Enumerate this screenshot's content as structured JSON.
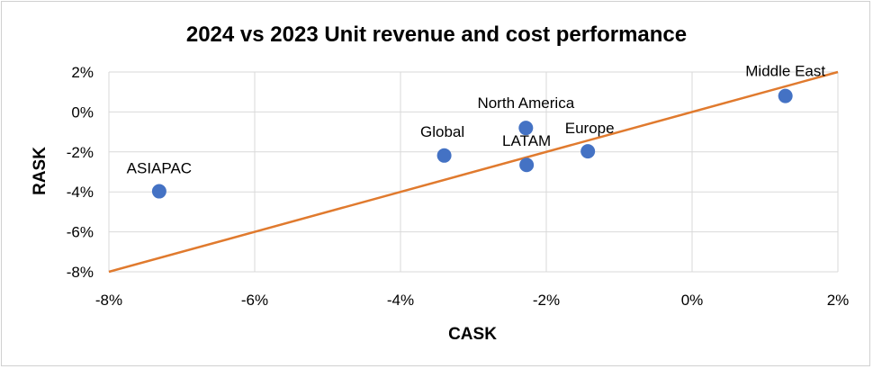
{
  "chart_data": {
    "type": "scatter",
    "title": "2024 vs 2023 Unit revenue and cost performance",
    "xlabel": "CASK",
    "ylabel": "RASK",
    "xlim": [
      -0.08,
      0.02
    ],
    "ylim": [
      -0.08,
      0.02
    ],
    "x_ticks": [
      {
        "value": -0.08,
        "label": "-8%"
      },
      {
        "value": -0.06,
        "label": "-6%"
      },
      {
        "value": -0.04,
        "label": "-4%"
      },
      {
        "value": -0.02,
        "label": "-2%"
      },
      {
        "value": 0.0,
        "label": "0%"
      },
      {
        "value": 0.02,
        "label": "2%"
      }
    ],
    "y_ticks": [
      {
        "value": 0.02,
        "label": "2%"
      },
      {
        "value": 0.0,
        "label": "0%"
      },
      {
        "value": -0.02,
        "label": "-2%"
      },
      {
        "value": -0.04,
        "label": "-4%"
      },
      {
        "value": -0.06,
        "label": "-6%"
      },
      {
        "value": -0.08,
        "label": "-8%"
      }
    ],
    "grid": true,
    "points": [
      {
        "label": "Middle East",
        "x": 0.0128,
        "y": 0.008,
        "label_position": "above-left"
      },
      {
        "label": "North America",
        "x": -0.0228,
        "y": -0.008,
        "label_position": "above"
      },
      {
        "label": "Europe",
        "x": -0.0143,
        "y": -0.0197,
        "label_position": "above-right"
      },
      {
        "label": "Global",
        "x": -0.034,
        "y": -0.0218,
        "label_position": "above"
      },
      {
        "label": "LATAM",
        "x": -0.0227,
        "y": -0.0265,
        "label_position": "above"
      },
      {
        "label": "ASIAPAC",
        "x": -0.0731,
        "y": -0.0397,
        "label_position": "above"
      }
    ],
    "reference_line": {
      "from": [
        -0.08,
        -0.08
      ],
      "to": [
        0.02,
        0.02
      ],
      "color": "#E07A2E"
    },
    "marker_color": "#4472C4"
  }
}
